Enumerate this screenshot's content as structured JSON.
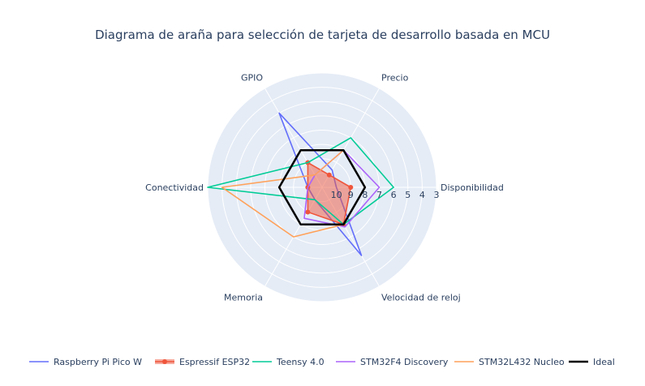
{
  "chart_data": {
    "type": "radar",
    "title": "Diagrama de araña para selección de tarjeta de desarrollo basada en MCU",
    "axes": [
      "Disponibilidad",
      "Precio",
      "GPIO",
      "Conectividad",
      "Memoria",
      "Velocidad de reloj"
    ],
    "radial_range": [
      11,
      3
    ],
    "radial_ticks": [
      "10",
      "9",
      "8",
      "7",
      "6",
      "5",
      "4",
      "3"
    ],
    "series": [
      {
        "name": "Raspberry Pi Pico W",
        "color": "#636efa",
        "fill": false,
        "marker": false,
        "values": [
          10,
          9.6,
          5,
          10,
          10,
          5.5
        ]
      },
      {
        "name": "Espressif ESP32",
        "color": "#ef553b",
        "fill": true,
        "marker": true,
        "values": [
          9,
          10,
          9,
          10,
          9,
          8
        ]
      },
      {
        "name": "Teensy 4.0",
        "color": "#00cc96",
        "fill": false,
        "marker": false,
        "values": [
          6,
          7,
          9,
          3,
          10,
          8
        ]
      },
      {
        "name": "STM32F4 Discovery",
        "color": "#ab63fa",
        "fill": false,
        "marker": false,
        "values": [
          7,
          8,
          10,
          10,
          8.5,
          7.8
        ]
      },
      {
        "name": "STM32L432 Nucleo",
        "color": "#ffa15a",
        "fill": false,
        "marker": false,
        "values": [
          8,
          8,
          10,
          4,
          7,
          8
        ]
      },
      {
        "name": "Ideal",
        "color": "#000000",
        "fill": false,
        "marker": false,
        "values": [
          8,
          8,
          8,
          8,
          8,
          8
        ]
      }
    ],
    "legend_position": "bottom"
  }
}
